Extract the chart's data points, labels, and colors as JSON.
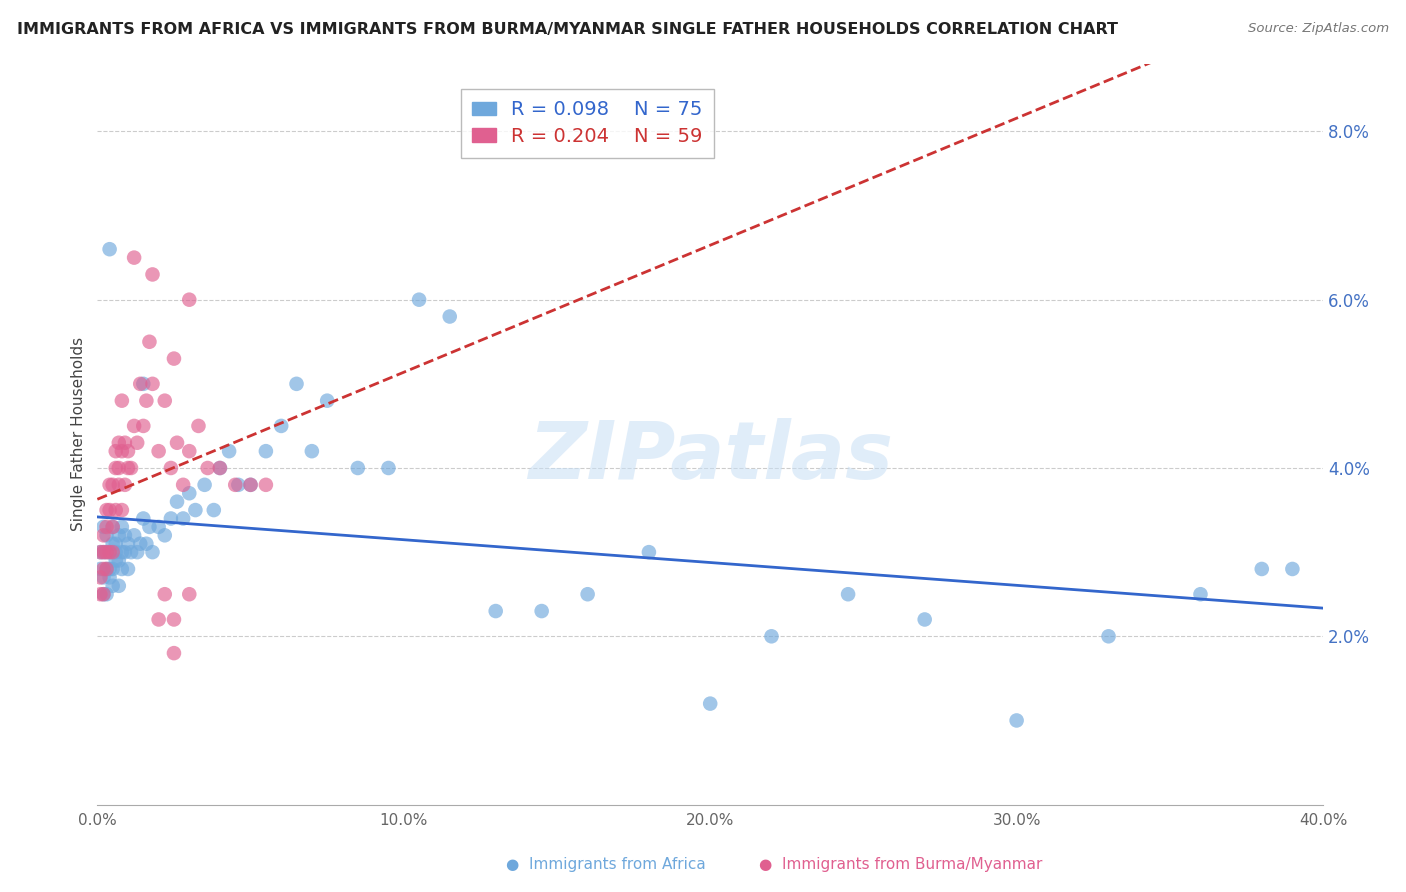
{
  "title": "IMMIGRANTS FROM AFRICA VS IMMIGRANTS FROM BURMA/MYANMAR SINGLE FATHER HOUSEHOLDS CORRELATION CHART",
  "source": "Source: ZipAtlas.com",
  "ylabel": "Single Father Households",
  "xlim": [
    0.0,
    0.4
  ],
  "ylim": [
    0.0,
    0.088
  ],
  "xticks": [
    0.0,
    0.1,
    0.2,
    0.3,
    0.4
  ],
  "xtick_labels": [
    "0.0%",
    "10.0%",
    "20.0%",
    "30.0%",
    "40.0%"
  ],
  "yticks": [
    0.02,
    0.04,
    0.06,
    0.08
  ],
  "ytick_labels": [
    "2.0%",
    "4.0%",
    "6.0%",
    "8.0%"
  ],
  "legend_africa_R": "R = 0.098",
  "legend_africa_N": "N = 75",
  "legend_burma_R": "R = 0.204",
  "legend_burma_N": "N = 59",
  "color_africa": "#6fa8dc",
  "color_burma": "#e06090",
  "trendline_africa_color": "#3366cc",
  "trendline_burma_color": "#cc3333",
  "watermark": "ZIPatlas",
  "africa_x": [
    0.001,
    0.001,
    0.002,
    0.002,
    0.002,
    0.002,
    0.003,
    0.003,
    0.003,
    0.003,
    0.004,
    0.004,
    0.004,
    0.005,
    0.005,
    0.005,
    0.005,
    0.006,
    0.006,
    0.006,
    0.007,
    0.007,
    0.007,
    0.008,
    0.008,
    0.008,
    0.009,
    0.009,
    0.01,
    0.01,
    0.011,
    0.012,
    0.013,
    0.014,
    0.015,
    0.016,
    0.017,
    0.018,
    0.02,
    0.022,
    0.024,
    0.026,
    0.028,
    0.03,
    0.032,
    0.035,
    0.038,
    0.04,
    0.043,
    0.046,
    0.05,
    0.055,
    0.06,
    0.065,
    0.07,
    0.075,
    0.085,
    0.095,
    0.105,
    0.115,
    0.13,
    0.145,
    0.16,
    0.18,
    0.2,
    0.22,
    0.245,
    0.27,
    0.3,
    0.33,
    0.36,
    0.38,
    0.39,
    0.004,
    0.015
  ],
  "africa_y": [
    0.03,
    0.028,
    0.027,
    0.03,
    0.025,
    0.033,
    0.025,
    0.028,
    0.03,
    0.032,
    0.027,
    0.03,
    0.028,
    0.026,
    0.028,
    0.031,
    0.033,
    0.029,
    0.03,
    0.031,
    0.026,
    0.029,
    0.032,
    0.028,
    0.03,
    0.033,
    0.03,
    0.032,
    0.028,
    0.031,
    0.03,
    0.032,
    0.03,
    0.031,
    0.034,
    0.031,
    0.033,
    0.03,
    0.033,
    0.032,
    0.034,
    0.036,
    0.034,
    0.037,
    0.035,
    0.038,
    0.035,
    0.04,
    0.042,
    0.038,
    0.038,
    0.042,
    0.045,
    0.05,
    0.042,
    0.048,
    0.04,
    0.04,
    0.06,
    0.058,
    0.023,
    0.023,
    0.025,
    0.03,
    0.012,
    0.02,
    0.025,
    0.022,
    0.01,
    0.02,
    0.025,
    0.028,
    0.028,
    0.066,
    0.05
  ],
  "burma_x": [
    0.001,
    0.001,
    0.001,
    0.002,
    0.002,
    0.002,
    0.002,
    0.003,
    0.003,
    0.003,
    0.003,
    0.004,
    0.004,
    0.004,
    0.005,
    0.005,
    0.005,
    0.006,
    0.006,
    0.006,
    0.007,
    0.007,
    0.007,
    0.008,
    0.008,
    0.008,
    0.009,
    0.009,
    0.01,
    0.01,
    0.011,
    0.012,
    0.013,
    0.014,
    0.015,
    0.016,
    0.017,
    0.018,
    0.02,
    0.022,
    0.024,
    0.026,
    0.028,
    0.03,
    0.033,
    0.036,
    0.04,
    0.045,
    0.05,
    0.055,
    0.012,
    0.018,
    0.025,
    0.03,
    0.02,
    0.022,
    0.025,
    0.03,
    0.025
  ],
  "burma_y": [
    0.027,
    0.03,
    0.025,
    0.028,
    0.032,
    0.03,
    0.025,
    0.033,
    0.03,
    0.035,
    0.028,
    0.035,
    0.038,
    0.03,
    0.033,
    0.038,
    0.03,
    0.04,
    0.035,
    0.042,
    0.04,
    0.043,
    0.038,
    0.042,
    0.048,
    0.035,
    0.038,
    0.043,
    0.04,
    0.042,
    0.04,
    0.045,
    0.043,
    0.05,
    0.045,
    0.048,
    0.055,
    0.05,
    0.042,
    0.048,
    0.04,
    0.043,
    0.038,
    0.042,
    0.045,
    0.04,
    0.04,
    0.038,
    0.038,
    0.038,
    0.065,
    0.063,
    0.053,
    0.06,
    0.022,
    0.025,
    0.018,
    0.025,
    0.022
  ]
}
